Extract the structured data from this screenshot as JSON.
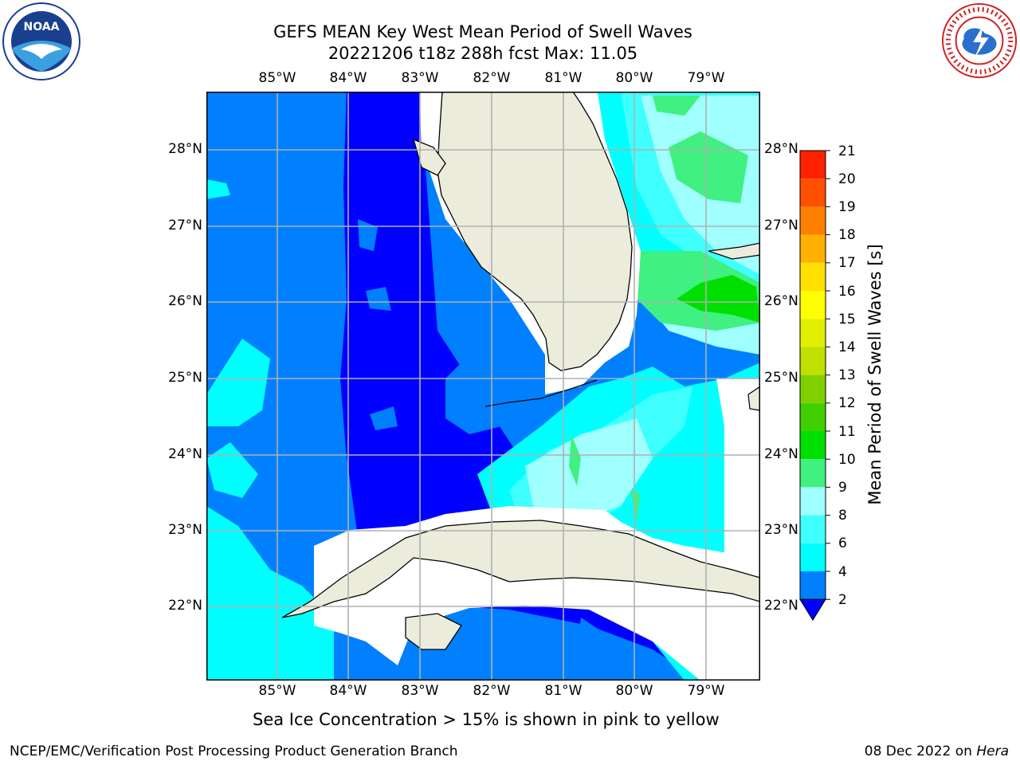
{
  "title": {
    "line1": "GEFS MEAN Key West Mean Period of Swell Waves",
    "line2": "20221206 t18z 288h fcst   Max: 11.05"
  },
  "logos": {
    "left": "noa-logo",
    "right": "nws-logo"
  },
  "map": {
    "lon_ticks": [
      "85°W",
      "84°W",
      "83°W",
      "82°W",
      "81°W",
      "80°W",
      "79°W"
    ],
    "lat_ticks": [
      "28°N",
      "27°N",
      "26°N",
      "25°N",
      "24°N",
      "23°N",
      "22°N"
    ],
    "extent": {
      "lon_min": -86.0,
      "lon_max": -78.3,
      "lat_min": 21.0,
      "lat_max": 28.75
    }
  },
  "colorbar": {
    "label": "Mean Period of Swell Waves [s]",
    "ticks": [
      "21",
      "20",
      "19",
      "18",
      "17",
      "16",
      "15",
      "14",
      "13",
      "12",
      "11",
      "10",
      "9",
      "8",
      "6",
      "4",
      "2"
    ],
    "levels": [
      2,
      4,
      6,
      8,
      9,
      10,
      11,
      12,
      13,
      14,
      15,
      16,
      17,
      18,
      19,
      20,
      21
    ],
    "colors": [
      "#0080ff",
      "#00ffff",
      "#40ffff",
      "#a0ffff",
      "#40f080",
      "#00e000",
      "#40d000",
      "#80d000",
      "#c0e000",
      "#e0f000",
      "#ffff00",
      "#ffe000",
      "#ffb000",
      "#ff8000",
      "#ff5000",
      "#ff2000"
    ],
    "under_color": "#0000ff"
  },
  "note": "Sea Ice Concentration > 15% is shown in pink to yellow",
  "footer": {
    "left": "NCEP/EMC/Verification Post Processing Product Generation Branch",
    "right_date": "08 Dec 2022 on",
    "right_host": "Hera"
  }
}
